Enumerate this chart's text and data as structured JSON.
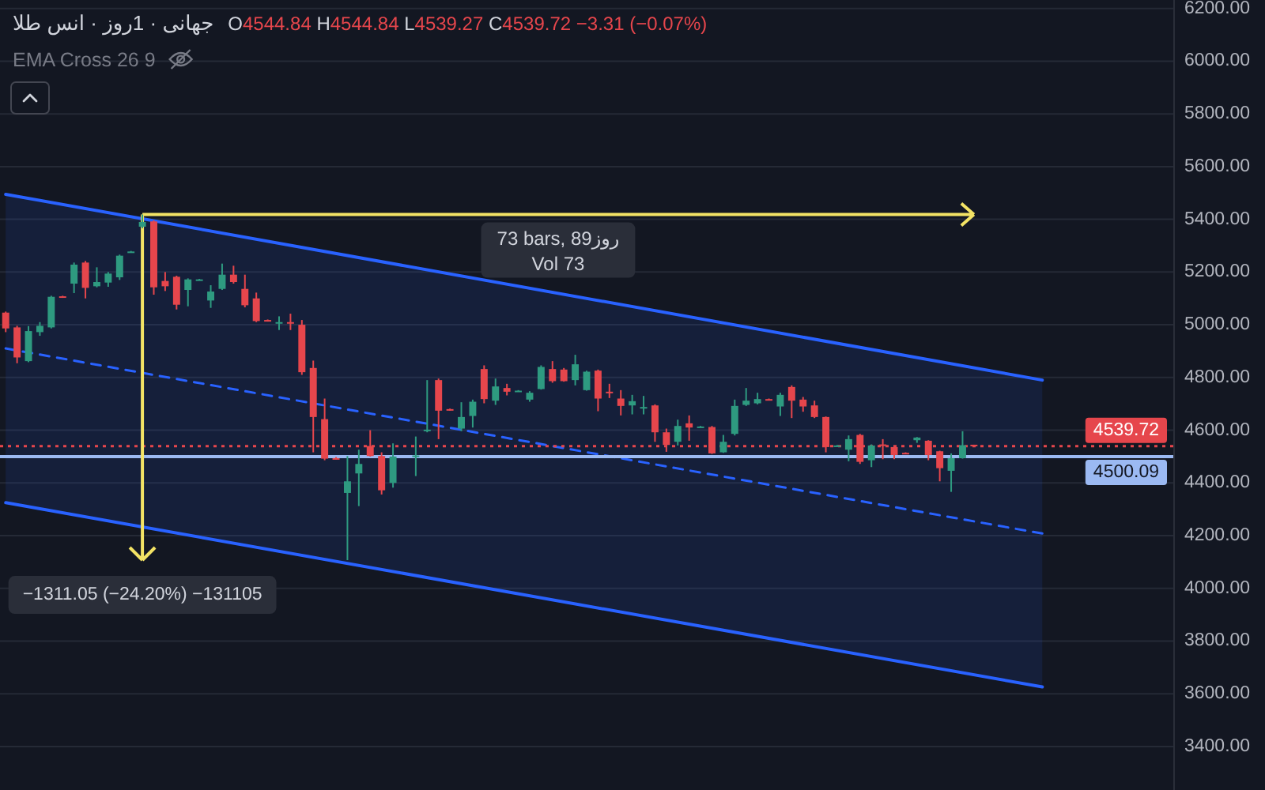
{
  "chart_data": {
    "type": "candlestick",
    "title": "جهانی · 1روز · انس طلا",
    "subtitle": "O4544.84 H4544.84 L4539.27 C4539.72 −3.31 (−0.07%)",
    "categories": [
      null,
      null,
      null,
      null,
      null,
      null,
      null,
      null,
      null,
      null,
      null,
      null,
      null,
      null,
      null,
      null,
      null,
      null,
      null,
      null,
      null,
      null,
      null,
      null,
      null,
      null,
      null,
      null,
      null,
      null,
      null,
      null,
      null,
      null,
      null,
      null,
      null,
      null,
      null,
      null,
      null,
      null,
      null,
      null,
      null,
      null,
      null,
      null,
      null,
      null,
      null,
      null,
      null,
      null,
      null,
      null,
      null,
      null,
      null,
      null,
      null,
      null,
      null,
      null,
      null,
      null,
      null,
      null,
      null,
      null,
      null,
      null,
      null,
      null,
      null,
      null,
      null,
      null,
      null,
      null,
      null,
      null,
      null,
      null,
      null,
      null,
      null,
      null,
      null,
      null,
      null,
      null,
      null,
      null,
      null,
      null,
      null,
      null,
      null,
      null,
      null,
      null,
      null
    ],
    "ohlc": [
      [
        5046,
        5050,
        4972,
        4986
      ],
      [
        4990,
        4996,
        4854,
        4876
      ],
      [
        4862,
        4995,
        4858,
        4976
      ],
      [
        4972,
        5010,
        4958,
        4996
      ],
      [
        4990,
        5110,
        4986,
        5106
      ],
      [
        5108,
        5110,
        5102,
        5104
      ],
      [
        5156,
        5236,
        5120,
        5228
      ],
      [
        5236,
        5242,
        5100,
        5140
      ],
      [
        5146,
        5218,
        5142,
        5162
      ],
      [
        5160,
        5200,
        5144,
        5194
      ],
      [
        5180,
        5266,
        5170,
        5262
      ],
      [
        5276,
        5280,
        5274,
        5278
      ],
      [
        5372,
        5418,
        5366,
        5390
      ],
      [
        5392,
        5396,
        5114,
        5142
      ],
      [
        5166,
        5200,
        5128,
        5146
      ],
      [
        5182,
        5186,
        5058,
        5076
      ],
      [
        5132,
        5176,
        5070,
        5172
      ],
      [
        5170,
        5174,
        5168,
        5172
      ],
      [
        5092,
        5150,
        5064,
        5126
      ],
      [
        5136,
        5232,
        5132,
        5190
      ],
      [
        5190,
        5224,
        5156,
        5162
      ],
      [
        5136,
        5190,
        5066,
        5074
      ],
      [
        5100,
        5122,
        5010,
        5014
      ],
      [
        5018,
        5020,
        5012,
        5014
      ],
      [
        5006,
        5032,
        4980,
        5010
      ],
      [
        5010,
        5042,
        4980,
        5006
      ],
      [
        5000,
        5018,
        4810,
        4820
      ],
      [
        4836,
        4864,
        4516,
        4650
      ],
      [
        4642,
        4720,
        4486,
        4492
      ],
      [
        4494,
        4498,
        4488,
        4490
      ],
      [
        4362,
        4502,
        4107,
        4406
      ],
      [
        4436,
        4526,
        4312,
        4472
      ],
      [
        4540,
        4600,
        4500,
        4502
      ],
      [
        4502,
        4516,
        4356,
        4372
      ],
      [
        4400,
        4550,
        4382,
        4500
      ],
      null,
      [
        4498,
        4576,
        4426,
        4504
      ],
      [
        4596,
        4790,
        4592,
        4602
      ],
      [
        4790,
        4796,
        4566,
        4674
      ],
      [
        4680,
        4682,
        4674,
        4676
      ],
      [
        4606,
        4706,
        4596,
        4650
      ],
      [
        4654,
        4716,
        4610,
        4708
      ],
      [
        4832,
        4846,
        4702,
        4718
      ],
      [
        4712,
        4796,
        4696,
        4766
      ],
      [
        4760,
        4776,
        4732,
        4746
      ],
      [
        4748,
        4752,
        4746,
        4750
      ],
      [
        4716,
        4748,
        4708,
        4742
      ],
      [
        4756,
        4846,
        4754,
        4840
      ],
      [
        4832,
        4862,
        4780,
        4786
      ],
      [
        4830,
        4836,
        4784,
        4786
      ],
      [
        4790,
        4886,
        4770,
        4850
      ],
      [
        4752,
        4826,
        4750,
        4822
      ],
      [
        4826,
        4830,
        4672,
        4720
      ],
      [
        4746,
        4776,
        4722,
        4742
      ],
      [
        4720,
        4752,
        4656,
        4692
      ],
      [
        4694,
        4734,
        4660,
        4710
      ],
      [
        4684,
        4730,
        4660,
        4688
      ],
      [
        4694,
        4698,
        4556,
        4592
      ],
      [
        4592,
        4606,
        4518,
        4544
      ],
      [
        4556,
        4640,
        4542,
        4616
      ],
      [
        4626,
        4656,
        4560,
        4610
      ],
      [
        4612,
        4616,
        4610,
        4614
      ],
      [
        4612,
        4616,
        4510,
        4512
      ],
      [
        4516,
        4582,
        4514,
        4556
      ],
      [
        4586,
        4716,
        4580,
        4692
      ],
      [
        4696,
        4760,
        4692,
        4712
      ],
      [
        4702,
        4742,
        4698,
        4718
      ],
      [
        4718,
        4720,
        4714,
        4716
      ],
      [
        4690,
        4742,
        4654,
        4734
      ],
      [
        4764,
        4770,
        4646,
        4712
      ],
      [
        4716,
        4726,
        4670,
        4690
      ],
      [
        4694,
        4712,
        4646,
        4650
      ],
      [
        4650,
        4652,
        4516,
        4536
      ],
      [
        4540,
        4544,
        4538,
        4542
      ],
      [
        4526,
        4580,
        4482,
        4566
      ],
      [
        4582,
        4586,
        4472,
        4480
      ],
      [
        4486,
        4546,
        4460,
        4542
      ],
      [
        4546,
        4566,
        4490,
        4542
      ],
      [
        4536,
        4540,
        4490,
        4506
      ],
      [
        4514,
        4516,
        4510,
        4512
      ],
      [
        4562,
        4574,
        4552,
        4572
      ],
      [
        4560,
        4562,
        4486,
        4506
      ],
      [
        4520,
        4522,
        4406,
        4456
      ],
      [
        4446,
        4512,
        4366,
        4494
      ],
      [
        4494,
        4596,
        4492,
        4543
      ],
      [
        4544.84,
        4544.84,
        4539.27,
        4539.72
      ],
      null,
      null,
      null,
      null,
      null,
      null,
      null,
      null,
      null,
      null,
      null,
      null,
      null,
      null,
      null,
      null,
      null
    ],
    "colors": [
      "#e6464c",
      "#e6464c",
      "#2e9a80",
      "#2e9a80",
      "#2e9a80",
      "#e6464c",
      "#2e9a80",
      "#e6464c",
      "#2e9a80",
      "#2e9a80",
      "#2e9a80",
      "#2e9a80",
      "#2e9a80",
      "#e6464c",
      "#e6464c",
      "#e6464c",
      "#2e9a80",
      "#2e9a80",
      "#2e9a80",
      "#2e9a80",
      "#e6464c",
      "#e6464c",
      "#e6464c",
      "#e6464c",
      "#2e9a80",
      "#e6464c",
      "#e6464c",
      "#e6464c",
      "#e6464c",
      "#e6464c",
      "#2e9a80",
      "#2e9a80",
      "#e6464c",
      "#e6464c",
      "#2e9a80",
      null,
      "#2e9a80",
      "#2e9a80",
      "#e6464c",
      "#e6464c",
      "#2e9a80",
      "#2e9a80",
      "#e6464c",
      "#2e9a80",
      "#e6464c",
      "#2e9a80",
      "#2e9a80",
      "#2e9a80",
      "#e6464c",
      "#e6464c",
      "#2e9a80",
      "#2e9a80",
      "#e6464c",
      "#e6464c",
      "#e6464c",
      "#2e9a80",
      "#2e9a80",
      "#e6464c",
      "#e6464c",
      "#2e9a80",
      "#e6464c",
      "#2e9a80",
      "#e6464c",
      "#2e9a80",
      "#2e9a80",
      "#2e9a80",
      "#2e9a80",
      "#e6464c",
      "#2e9a80",
      "#e6464c",
      "#e6464c",
      "#e6464c",
      "#e6464c",
      "#2e9a80",
      "#2e9a80",
      "#e6464c",
      "#2e9a80",
      "#e6464c",
      "#e6464c",
      "#e6464c",
      "#2e9a80",
      "#e6464c",
      "#e6464c",
      "#2e9a80",
      "#2e9a80",
      "#e6464c",
      null,
      null,
      null,
      null,
      null,
      null,
      null,
      null,
      null,
      null,
      null,
      null,
      null,
      null,
      null,
      null,
      null
    ],
    "series": [
      {
        "type": "line",
        "color": "#2962ff",
        "line_style": "dashed",
        "values": [
          4910,
          null,
          null,
          null,
          null,
          null,
          null,
          null,
          null,
          null,
          null,
          null,
          null,
          null,
          null,
          null,
          null,
          null,
          null,
          null,
          null,
          null,
          null,
          null,
          null,
          null,
          null,
          null,
          null,
          null,
          null,
          null,
          null,
          null,
          null,
          null,
          null,
          null,
          null,
          null,
          null,
          null,
          null,
          null,
          null,
          null,
          null,
          null,
          null,
          null,
          null,
          null,
          null,
          null,
          null,
          null,
          null,
          null,
          null,
          null,
          null,
          null,
          null,
          null,
          null,
          null,
          null,
          null,
          null,
          null,
          null,
          null,
          null,
          null,
          null,
          null,
          null,
          null,
          null,
          null,
          null,
          null,
          null,
          null,
          null,
          null,
          null,
          null,
          null,
          null,
          null,
          4208,
          null,
          null,
          null,
          null,
          null,
          null,
          null,
          null,
          null,
          null,
          null
        ],
        "lower": [
          4325,
          null,
          null,
          null,
          null,
          null,
          null,
          null,
          null,
          null,
          null,
          null,
          null,
          null,
          null,
          null,
          null,
          null,
          null,
          null,
          null,
          null,
          null,
          null,
          null,
          null,
          null,
          null,
          null,
          null,
          null,
          null,
          null,
          null,
          null,
          null,
          null,
          null,
          null,
          null,
          null,
          null,
          null,
          null,
          null,
          null,
          null,
          null,
          null,
          null,
          null,
          null,
          null,
          null,
          null,
          null,
          null,
          null,
          null,
          null,
          null,
          null,
          null,
          null,
          null,
          null,
          null,
          null,
          null,
          null,
          null,
          null,
          null,
          null,
          null,
          null,
          null,
          null,
          null,
          null,
          null,
          null,
          null,
          null,
          null,
          null,
          null,
          null,
          null,
          null,
          null,
          3626,
          null,
          null,
          null,
          null,
          null,
          null,
          null,
          null,
          null,
          null,
          null
        ],
        "upper": [
          5495,
          null,
          null,
          null,
          null,
          null,
          null,
          null,
          null,
          null,
          null,
          null,
          null,
          null,
          null,
          null,
          null,
          null,
          null,
          null,
          null,
          null,
          null,
          null,
          null,
          null,
          null,
          null,
          null,
          null,
          null,
          null,
          null,
          null,
          null,
          null,
          null,
          null,
          null,
          null,
          null,
          null,
          null,
          null,
          null,
          null,
          null,
          null,
          null,
          null,
          null,
          null,
          null,
          null,
          null,
          null,
          null,
          null,
          null,
          null,
          null,
          null,
          null,
          null,
          null,
          null,
          null,
          null,
          null,
          null,
          null,
          null,
          null,
          null,
          null,
          null,
          null,
          null,
          null,
          null,
          null,
          null,
          null,
          null,
          null,
          null,
          null,
          null,
          null,
          null,
          null,
          4790,
          null,
          null,
          null,
          null,
          null,
          null,
          null,
          null,
          null,
          null,
          null
        ]
      },
      {
        "type": "line",
        "color": "#2962ff",
        "values": [
          5495,
          null,
          null,
          null,
          null,
          null,
          null,
          null,
          null,
          null,
          null,
          null,
          null,
          null,
          null,
          null,
          null,
          null,
          null,
          null,
          null,
          null,
          null,
          null,
          null,
          null,
          null,
          null,
          null,
          null,
          null,
          null,
          null,
          null,
          null,
          null,
          null,
          null,
          null,
          null,
          null,
          null,
          null,
          null,
          null,
          null,
          null,
          null,
          null,
          null,
          null,
          null,
          null,
          null,
          null,
          null,
          null,
          null,
          null,
          null,
          null,
          null,
          null,
          null,
          null,
          null,
          null,
          null,
          null,
          null,
          null,
          null,
          null,
          null,
          null,
          null,
          null,
          null,
          null,
          null,
          null,
          null,
          null,
          null,
          null,
          null,
          null,
          null,
          null,
          null,
          null,
          4790,
          null,
          null,
          null,
          null,
          null,
          null,
          null,
          null,
          null,
          null,
          null
        ]
      },
      {
        "type": "line",
        "color": "#2962ff",
        "values": [
          4325,
          null,
          null,
          null,
          null,
          null,
          null,
          null,
          null,
          null,
          null,
          null,
          null,
          null,
          null,
          null,
          null,
          null,
          null,
          null,
          null,
          null,
          null,
          null,
          null,
          null,
          null,
          null,
          null,
          null,
          null,
          null,
          null,
          null,
          null,
          null,
          null,
          null,
          null,
          null,
          null,
          null,
          null,
          null,
          null,
          null,
          null,
          null,
          null,
          null,
          null,
          null,
          null,
          null,
          null,
          null,
          null,
          null,
          null,
          null,
          null,
          null,
          null,
          null,
          null,
          null,
          null,
          null,
          null,
          null,
          null,
          null,
          null,
          null,
          null,
          null,
          null,
          null,
          null,
          null,
          null,
          null,
          null,
          null,
          null,
          null,
          null,
          null,
          null,
          null,
          null,
          3626,
          null,
          null,
          null,
          null,
          null,
          null,
          null,
          null,
          null,
          null,
          null
        ]
      }
    ],
    "ylim": [
      3235,
      6232
    ],
    "yticks": [
      {
        "value": 3400,
        "label": "3400.00"
      },
      {
        "value": 3600,
        "label": "3600.00"
      },
      {
        "value": 3800,
        "label": "3800.00"
      },
      {
        "value": 4000,
        "label": "4000.00"
      },
      {
        "value": 4200,
        "label": "4200.00"
      },
      {
        "value": 4400,
        "label": "4400.00"
      },
      {
        "value": 4600,
        "label": "4600.00"
      },
      {
        "value": 4800,
        "label": "4800.00"
      },
      {
        "value": 5000,
        "label": "5000.00"
      },
      {
        "value": 5200,
        "label": "5200.00"
      },
      {
        "value": 5400,
        "label": "5400.00"
      },
      {
        "value": 5600,
        "label": "5600.00"
      },
      {
        "value": 5800,
        "label": "5800.00"
      },
      {
        "value": 6000,
        "label": "6000.00"
      },
      {
        "value": 6200,
        "label": "6200.00"
      }
    ],
    "grid": "y",
    "tick_labels": "y",
    "ref_lines": [
      {
        "axis": "y",
        "value": 4539.72,
        "label": "4539.72",
        "color": "#e6464c",
        "line_style": "dotted"
      },
      {
        "axis": "y",
        "value": 4500.09,
        "label": "4500.09",
        "color": "#9bb9f2",
        "line_style": "solid"
      }
    ],
    "annotations": [
      "EMA Cross 26 9",
      "73 bars, 89روز",
      "Vol 73",
      "−1311.05 (−24.20%) −131105"
    ]
  }
}
